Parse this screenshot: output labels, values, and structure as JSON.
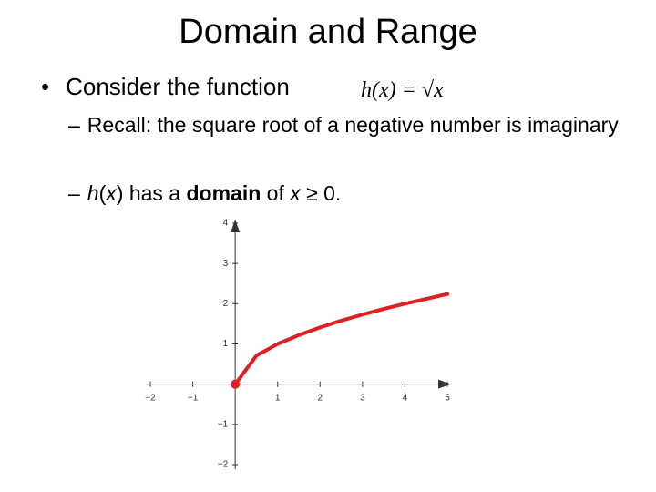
{
  "header": {
    "title": "Domain and Range"
  },
  "bullet": {
    "marker": "•",
    "text": "Consider the function",
    "formula": "h(x) = √x"
  },
  "sub_bullets": [
    {
      "marker": "–",
      "segments": [
        {
          "text": "Recall: the square root of a negative number is imaginary",
          "style": "normal"
        }
      ]
    },
    {
      "marker": "–",
      "segments": [
        {
          "text": "h",
          "style": "italic"
        },
        {
          "text": "(",
          "style": "normal"
        },
        {
          "text": "x",
          "style": "italic"
        },
        {
          "text": ") has a ",
          "style": "normal"
        },
        {
          "text": "domain",
          "style": "bold"
        },
        {
          "text": " of ",
          "style": "normal"
        },
        {
          "text": "x",
          "style": "italic"
        },
        {
          "text": " ≥ 0.",
          "style": "normal"
        }
      ]
    }
  ],
  "chart_data": {
    "type": "line",
    "x": [
      0,
      0.5,
      1,
      1.5,
      2,
      2.5,
      3,
      3.5,
      4,
      4.5,
      5
    ],
    "series": [
      {
        "color": "#e02020",
        "values": [
          0,
          0.71,
          1,
          1.22,
          1.41,
          1.58,
          1.73,
          1.87,
          2,
          2.12,
          2.24
        ]
      }
    ],
    "xlim": [
      -2,
      5
    ],
    "ylim": [
      -2,
      4
    ],
    "xticks": [
      {
        "value": -2,
        "label": "−2"
      },
      {
        "value": -1,
        "label": "−1"
      },
      1,
      2,
      3,
      4,
      5
    ],
    "yticks": [
      {
        "value": -2,
        "label": "−2"
      },
      {
        "value": -1,
        "label": "−1"
      },
      1,
      2,
      3,
      4
    ],
    "start_marker": true
  }
}
